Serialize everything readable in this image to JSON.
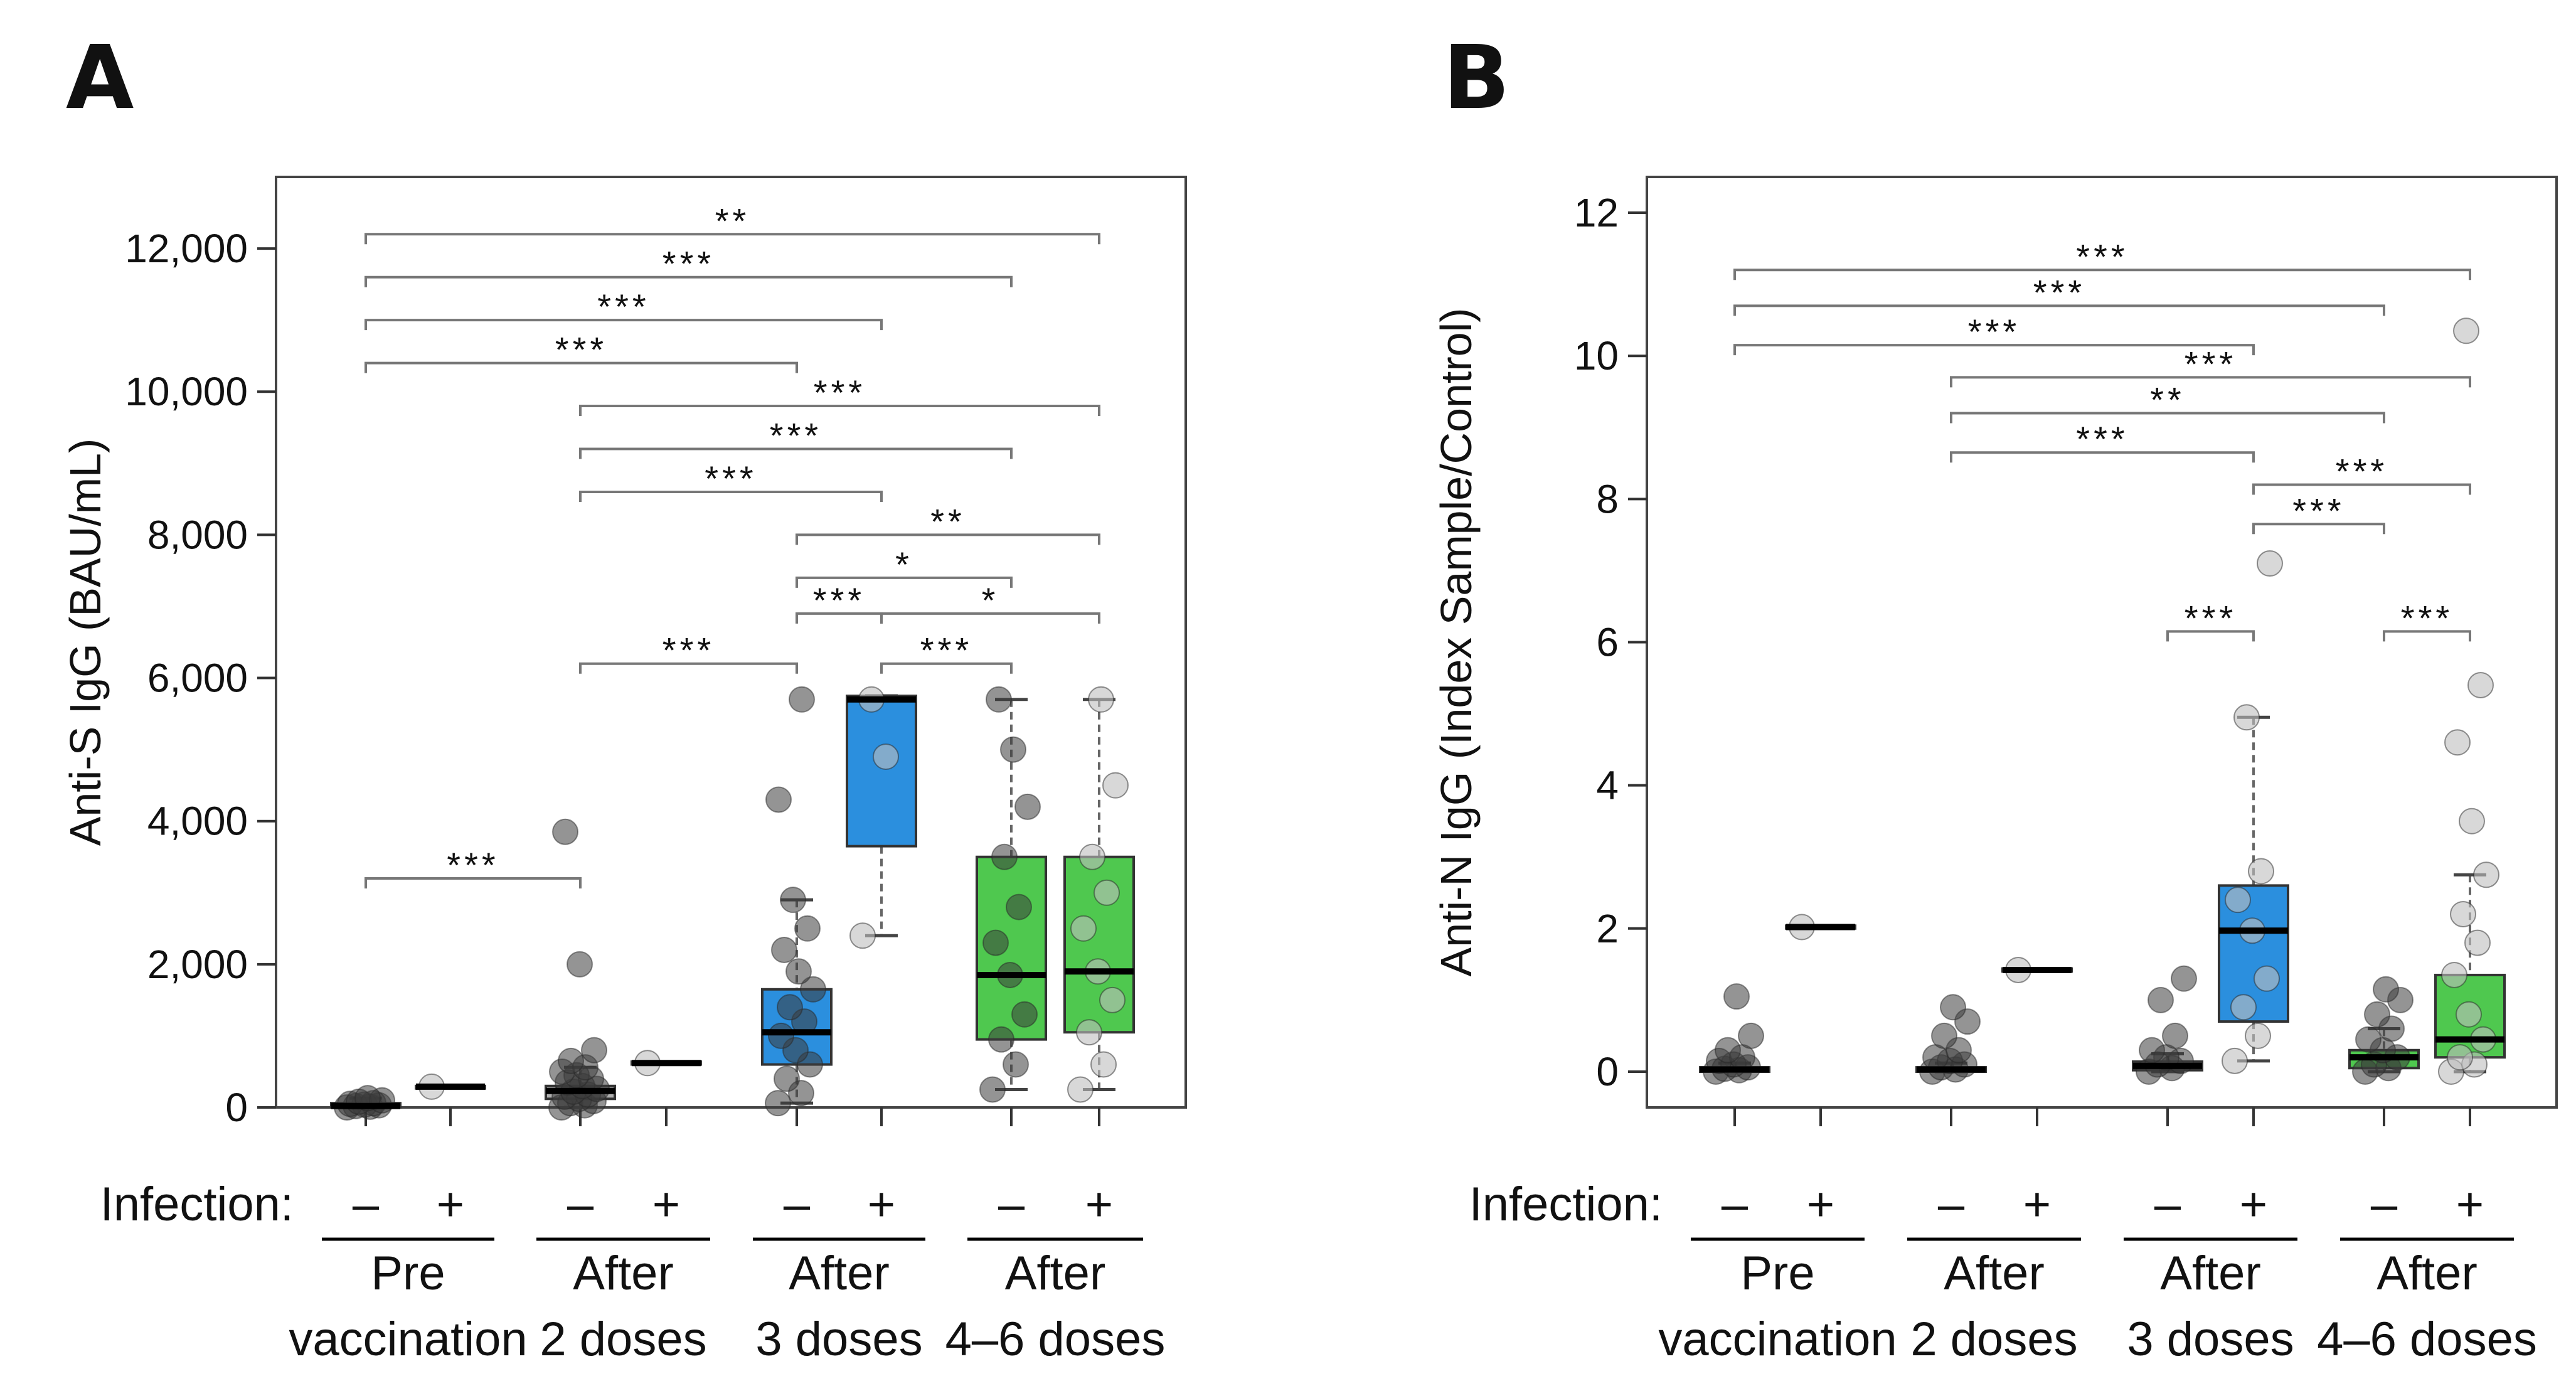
{
  "chart_data": [
    {
      "panel_label": "A",
      "type": "box",
      "ylabel": "Anti-S IgG (BAU/mL)",
      "ylim": [
        0,
        13000
      ],
      "yticks": [
        0,
        2000,
        4000,
        6000,
        8000,
        10000,
        12000
      ],
      "ytick_labels": [
        "0",
        "2,000",
        "4,000",
        "6,000",
        "8,000",
        "10,000",
        "12,000"
      ],
      "infection_label": "Infection:",
      "groups": [
        {
          "label_line1": "Pre",
          "label_line2": "vaccination"
        },
        {
          "label_line1": "After",
          "label_line2": "2 doses"
        },
        {
          "label_line1": "After",
          "label_line2": "3 doses"
        },
        {
          "label_line1": "After",
          "label_line2": "4–6 doses"
        }
      ],
      "boxes": [
        {
          "group": 0,
          "infection": "–",
          "color": "#d0d0d0",
          "q1": 0,
          "median": 20,
          "q3": 60,
          "whisker_low": 0,
          "whisker_high": 130,
          "points": [
            0,
            10,
            20,
            30,
            40,
            50,
            60,
            80,
            100,
            130
          ]
        },
        {
          "group": 0,
          "infection": "+",
          "color": "#d0d0d0",
          "q1": 280,
          "median": 290,
          "q3": 300,
          "whisker_low": 280,
          "whisker_high": 300,
          "points": [
            290
          ]
        },
        {
          "group": 1,
          "infection": "–",
          "color": "#b0b0b0",
          "q1": 120,
          "median": 230,
          "q3": 300,
          "whisker_low": 0,
          "whisker_high": 560,
          "points": [
            0,
            30,
            60,
            90,
            120,
            150,
            180,
            220,
            260,
            300,
            350,
            400,
            450,
            500,
            560,
            650,
            800,
            2000,
            3850
          ]
        },
        {
          "group": 1,
          "infection": "+",
          "color": "#d0d0d0",
          "q1": 600,
          "median": 620,
          "q3": 640,
          "whisker_low": 600,
          "whisker_high": 640,
          "points": [
            620
          ]
        },
        {
          "group": 2,
          "infection": "–",
          "color": "#2b8fde",
          "q1": 600,
          "median": 1050,
          "q3": 1650,
          "whisker_low": 60,
          "whisker_high": 2900,
          "points": [
            60,
            200,
            400,
            600,
            800,
            1000,
            1200,
            1400,
            1650,
            1900,
            2200,
            2500,
            2900,
            4300,
            5700
          ]
        },
        {
          "group": 2,
          "infection": "+",
          "color": "#2b8fde",
          "q1": 3650,
          "median": 5700,
          "q3": 5750,
          "whisker_low": 2400,
          "whisker_high": 5750,
          "points": [
            2400,
            4900,
            5700
          ]
        },
        {
          "group": 3,
          "infection": "–",
          "color": "#4fc84f",
          "q1": 950,
          "median": 1850,
          "q3": 3500,
          "whisker_low": 250,
          "whisker_high": 5700,
          "points": [
            250,
            600,
            950,
            1300,
            1850,
            2300,
            2800,
            3500,
            4200,
            5000,
            5700
          ]
        },
        {
          "group": 3,
          "infection": "+",
          "color": "#4fc84f",
          "q1": 1050,
          "median": 1900,
          "q3": 3500,
          "whisker_low": 250,
          "whisker_high": 5700,
          "points": [
            250,
            600,
            1050,
            1500,
            1900,
            2500,
            3000,
            3500,
            4500,
            5700
          ]
        }
      ],
      "brackets": [
        {
          "from": 0,
          "to": 2,
          "y": 3200,
          "label": "***"
        },
        {
          "from": 2,
          "to": 4,
          "y": 6200,
          "label": "***"
        },
        {
          "from": 5,
          "to": 6,
          "y": 6200,
          "label": "***"
        },
        {
          "from": 4,
          "to": 5,
          "y": 6900,
          "label": "***"
        },
        {
          "from": 5,
          "to": 7,
          "y": 6900,
          "label": "*"
        },
        {
          "from": 4,
          "to": 6,
          "y": 7400,
          "label": "*"
        },
        {
          "from": 4,
          "to": 7,
          "y": 8000,
          "label": "**"
        },
        {
          "from": 2,
          "to": 5,
          "y": 8600,
          "label": "***"
        },
        {
          "from": 2,
          "to": 6,
          "y": 9200,
          "label": "***"
        },
        {
          "from": 2,
          "to": 7,
          "y": 9800,
          "label": "***"
        },
        {
          "from": 0,
          "to": 4,
          "y": 10400,
          "label": "***"
        },
        {
          "from": 0,
          "to": 5,
          "y": 11000,
          "label": "***"
        },
        {
          "from": 0,
          "to": 6,
          "y": 11600,
          "label": "***"
        },
        {
          "from": 0,
          "to": 7,
          "y": 12200,
          "label": "**"
        }
      ]
    },
    {
      "panel_label": "B",
      "type": "box",
      "ylabel": "Anti-N IgG (Index Sample/Control)",
      "ylim": [
        -0.5,
        12.5
      ],
      "yticks": [
        0,
        2,
        4,
        6,
        8,
        10,
        12
      ],
      "ytick_labels": [
        "0",
        "2",
        "4",
        "6",
        "8",
        "10",
        "12"
      ],
      "infection_label": "Infection:",
      "groups": [
        {
          "label_line1": "Pre",
          "label_line2": "vaccination"
        },
        {
          "label_line1": "After",
          "label_line2": "2 doses"
        },
        {
          "label_line1": "After",
          "label_line2": "3 doses"
        },
        {
          "label_line1": "After",
          "label_line2": "4–6 doses"
        }
      ],
      "boxes": [
        {
          "group": 0,
          "infection": "–",
          "color": "#d0d0d0",
          "q1": 0.0,
          "median": 0.03,
          "q3": 0.06,
          "whisker_low": 0.0,
          "whisker_high": 0.12,
          "points": [
            0.0,
            0.02,
            0.04,
            0.06,
            0.1,
            0.15,
            0.2,
            0.3,
            0.5,
            1.05
          ]
        },
        {
          "group": 0,
          "infection": "+",
          "color": "#d0d0d0",
          "q1": 2.0,
          "median": 2.02,
          "q3": 2.04,
          "whisker_low": 2.0,
          "whisker_high": 2.04,
          "points": [
            2.02
          ]
        },
        {
          "group": 1,
          "infection": "–",
          "color": "#d0d0d0",
          "q1": 0.0,
          "median": 0.03,
          "q3": 0.06,
          "whisker_low": 0.0,
          "whisker_high": 0.12,
          "points": [
            0.0,
            0.03,
            0.06,
            0.1,
            0.15,
            0.2,
            0.3,
            0.5,
            0.7,
            0.9
          ]
        },
        {
          "group": 1,
          "infection": "+",
          "color": "#d0d0d0",
          "q1": 1.4,
          "median": 1.42,
          "q3": 1.44,
          "whisker_low": 1.4,
          "whisker_high": 1.44,
          "points": [
            1.42
          ]
        },
        {
          "group": 2,
          "infection": "–",
          "color": "#d0d0d0",
          "q1": 0.02,
          "median": 0.08,
          "q3": 0.14,
          "whisker_low": 0.0,
          "whisker_high": 0.25,
          "points": [
            0.0,
            0.05,
            0.1,
            0.15,
            0.2,
            0.3,
            0.5,
            1.0,
            1.3
          ]
        },
        {
          "group": 2,
          "infection": "+",
          "color": "#2b8fde",
          "q1": 0.7,
          "median": 1.97,
          "q3": 2.6,
          "whisker_low": 0.15,
          "whisker_high": 4.95,
          "points": [
            0.15,
            0.5,
            0.9,
            1.3,
            1.97,
            2.4,
            2.8,
            4.95,
            7.1
          ]
        },
        {
          "group": 3,
          "infection": "–",
          "color": "#4fc84f",
          "q1": 0.05,
          "median": 0.2,
          "q3": 0.3,
          "whisker_low": 0.0,
          "whisker_high": 0.6,
          "points": [
            0.0,
            0.05,
            0.1,
            0.2,
            0.3,
            0.45,
            0.6,
            0.8,
            1.0,
            1.15
          ]
        },
        {
          "group": 3,
          "infection": "+",
          "color": "#4fc84f",
          "q1": 0.2,
          "median": 0.45,
          "q3": 1.35,
          "whisker_low": 0.0,
          "whisker_high": 2.75,
          "points": [
            0.0,
            0.1,
            0.2,
            0.45,
            0.8,
            1.35,
            1.8,
            2.2,
            2.75,
            3.5,
            4.6,
            5.4,
            10.35
          ]
        }
      ],
      "brackets": [
        {
          "from": 4,
          "to": 5,
          "y": 6.15,
          "label": "***"
        },
        {
          "from": 6,
          "to": 7,
          "y": 6.15,
          "label": "***"
        },
        {
          "from": 5,
          "to": 6,
          "y": 7.65,
          "label": "***"
        },
        {
          "from": 5,
          "to": 7,
          "y": 8.2,
          "label": "***"
        },
        {
          "from": 2,
          "to": 5,
          "y": 8.65,
          "label": "***"
        },
        {
          "from": 2,
          "to": 6,
          "y": 9.2,
          "label": "**"
        },
        {
          "from": 2,
          "to": 7,
          "y": 9.7,
          "label": "***"
        },
        {
          "from": 0,
          "to": 5,
          "y": 10.15,
          "label": "***"
        },
        {
          "from": 0,
          "to": 6,
          "y": 10.7,
          "label": "***"
        },
        {
          "from": 0,
          "to": 7,
          "y": 11.2,
          "label": "***"
        }
      ]
    }
  ]
}
